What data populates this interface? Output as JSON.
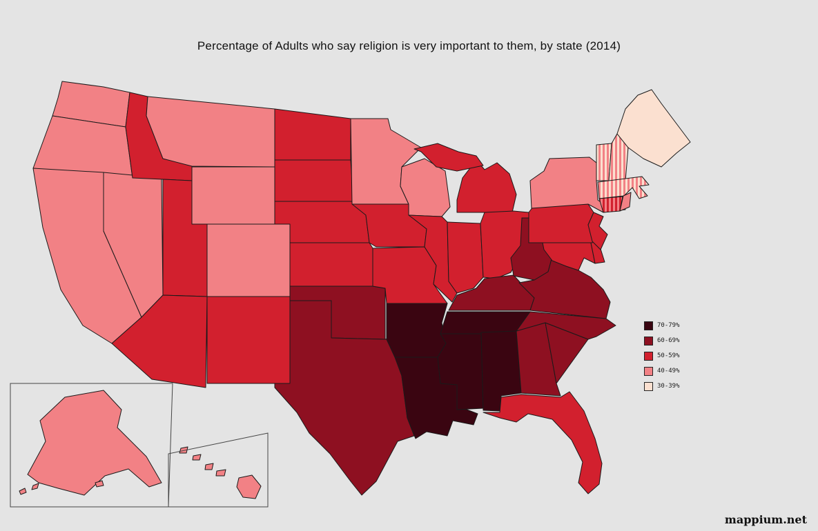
{
  "title": "Percentage of Adults who say religion is very important to them, by state (2014)",
  "watermark": "mappium.net",
  "background_color": "#e4e4e4",
  "legend": {
    "items": [
      {
        "label": "70-79%",
        "color": "#3a0511"
      },
      {
        "label": "60-69%",
        "color": "#8e1021"
      },
      {
        "label": "50-59%",
        "color": "#d2202e"
      },
      {
        "label": "40-49%",
        "color": "#f28185"
      },
      {
        "label": "30-39%",
        "color": "#fbe0d0"
      }
    ]
  },
  "map": {
    "stroke_color": "#1a1a1a",
    "inset_box_color": "#444444"
  },
  "chart_data": {
    "type": "choropleth",
    "title": "Percentage of Adults who say religion is very important to them, by state (2014)",
    "region": "United States",
    "unit": "percent of adults",
    "buckets": [
      "70-79%",
      "60-69%",
      "50-59%",
      "40-49%",
      "30-39%"
    ],
    "states": {
      "WA": "40-49%",
      "OR": "40-49%",
      "CA": "40-49%",
      "NV": "40-49%",
      "ID": "50-59%",
      "MT": "40-49%",
      "WY": "40-49%",
      "UT": "50-59%",
      "AZ": "50-59%",
      "CO": "40-49%",
      "NM": "50-59%",
      "ND": "50-59%",
      "SD": "50-59%",
      "NE": "50-59%",
      "KS": "50-59%",
      "OK": "60-69%",
      "TX": "60-69%",
      "MN": "40-49%",
      "IA": "50-59%",
      "MO": "50-59%",
      "AR": "70-79%",
      "LA": "70-79%",
      "MS": "70-79%",
      "WI": "40-49%",
      "IL": "50-59%",
      "IN": "50-59%",
      "MI": "50-59%",
      "OH": "50-59%",
      "KY": "60-69%",
      "TN": "70-79%",
      "AL": "70-79%",
      "GA": "60-69%",
      "FL": "50-59%",
      "SC": "60-69%",
      "NC": "60-69%",
      "VA": "60-69%",
      "WV": "60-69%",
      "MD": "50-59%",
      "DE": "50-59%",
      "PA": "50-59%",
      "NJ": "50-59%",
      "NY": "40-49%",
      "CT": [
        "40-49%",
        "50-59%"
      ],
      "RI": "40-49%",
      "MA": [
        "30-39%",
        "40-49%"
      ],
      "VT": [
        "30-39%",
        "40-49%"
      ],
      "NH": [
        "30-39%",
        "40-49%"
      ],
      "ME": "30-39%",
      "AK": "40-49%",
      "HI": "40-49%"
    }
  }
}
